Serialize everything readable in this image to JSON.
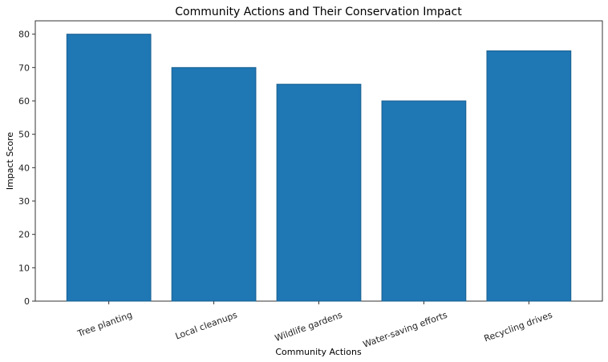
{
  "chart_data": {
    "type": "bar",
    "title": "Community Actions and Their Conservation Impact",
    "xlabel": "Community Actions",
    "ylabel": "Impact Score",
    "categories": [
      "Tree planting",
      "Local cleanups",
      "Wildlife gardens",
      "Water-saving efforts",
      "Recycling drives"
    ],
    "values": [
      80,
      70,
      65,
      60,
      75
    ],
    "ylim": [
      0,
      84
    ],
    "yticks": [
      0,
      10,
      20,
      30,
      40,
      50,
      60,
      70,
      80
    ],
    "bar_color": "#1f77b4",
    "bar_edge_color": "#1a5f8f",
    "grid": false,
    "legend": "none"
  }
}
